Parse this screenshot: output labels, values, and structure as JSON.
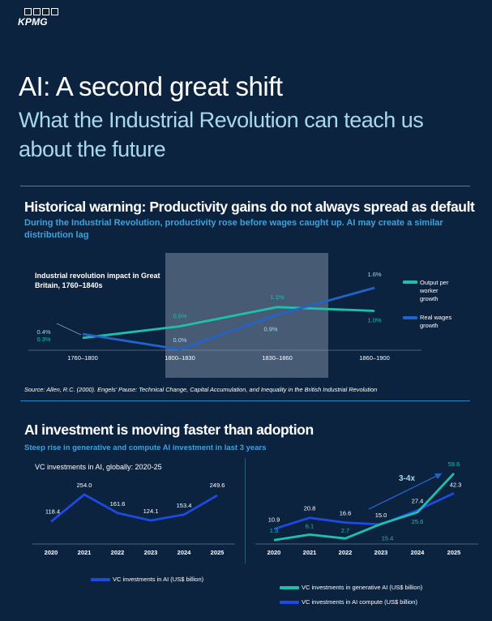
{
  "brand": {
    "logo_text": "KPMG"
  },
  "header": {
    "title": "AI: A second great shift",
    "subtitle": "What the Industrial Revolution can teach us about the future"
  },
  "section1": {
    "title": "Historical warning: Productivity gains do not always spread as default",
    "subtitle": "During the Industrial Revolution, productivity rose before wages caught up. AI may create a similar distribution lag",
    "source": "Source: Allen, R.C. (2000). Engels' Pause: Technical Change, Capital Accumulation, and Inequality in the British Industrial Revolution"
  },
  "section2": {
    "title": "AI investment is moving faster than adoption",
    "subtitle": "Steep rise in generative and compute AI investment in last 3 years"
  },
  "colors": {
    "background": "#0c2340",
    "teal": "#1fbfae",
    "blue": "#1e49e2",
    "mid_blue": "#2363c9",
    "highlight_panel": "#5b6f86",
    "accent_text": "#3ea3dc"
  },
  "chart_data": [
    {
      "type": "line",
      "title": "Industrial revolution impact in Great Britain, 1760–1840s",
      "categories": [
        "1760–1800",
        "1800–1830",
        "1830–1860",
        "1860–1900"
      ],
      "highlight": {
        "from": "1800–1830",
        "to": "1830–1860"
      },
      "series": [
        {
          "name": "Output per worker growth",
          "color": "#1fbfae",
          "values": [
            0.3,
            0.6,
            1.1,
            1.0
          ],
          "labels": [
            "0.3%",
            "0.6%",
            "1.1%",
            "1.0%"
          ]
        },
        {
          "name": "Real wages growth",
          "color": "#2363c9",
          "values": [
            0.4,
            0.0,
            0.9,
            1.6
          ],
          "labels": [
            "0.4%",
            "0.0%",
            "0.9%",
            "1.6%"
          ]
        }
      ],
      "legend": "right"
    },
    {
      "type": "line",
      "title": "VC investments in AI, globally: 2020-25",
      "categories": [
        "2020",
        "2021",
        "2022",
        "2023",
        "2024",
        "2025"
      ],
      "series": [
        {
          "name": "VC investments in AI (US$ billion)",
          "color": "#1e49e2",
          "values": [
            118.4,
            254.0,
            161.6,
            124.1,
            153.4,
            249.6
          ],
          "labels": [
            "118.4",
            "254.0",
            "161.6",
            "124.1",
            "153.4",
            "249.6"
          ]
        }
      ],
      "legend": "bottom"
    },
    {
      "type": "line",
      "categories": [
        "2020",
        "2021",
        "2022",
        "2023",
        "2024",
        "2025"
      ],
      "annotation": "3-4x",
      "series": [
        {
          "name": "VC investments in generative AI (US$ billion)",
          "color": "#1fbfae",
          "values": [
            1.3,
            6.1,
            2.7,
            15.4,
            25.6,
            59.6
          ],
          "labels": [
            "1.3",
            "6.1",
            "2.7",
            "15.4",
            "25.6",
            "59.6"
          ]
        },
        {
          "name": "VC investments in AI compute (US$ billion)",
          "color": "#1e49e2",
          "values": [
            10.9,
            20.8,
            16.6,
            15.0,
            27.4,
            42.3
          ],
          "labels": [
            "10.9",
            "20.8",
            "16.6",
            "15.0",
            "27.4",
            "42.3"
          ]
        }
      ],
      "legend": "bottom"
    }
  ]
}
